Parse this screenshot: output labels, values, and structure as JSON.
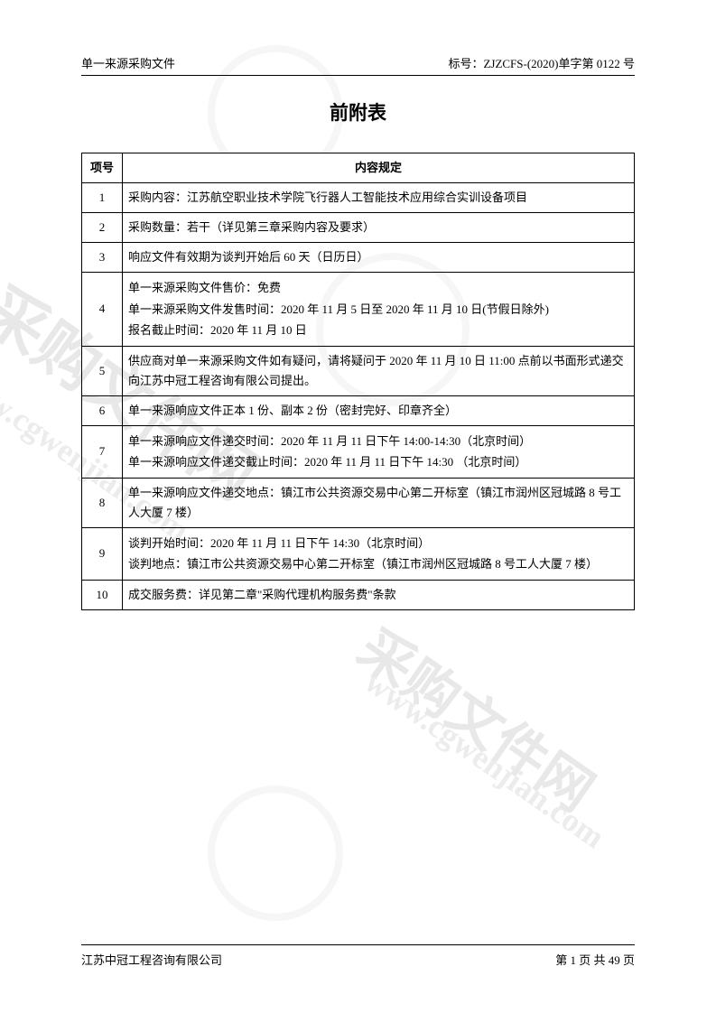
{
  "header": {
    "left": "单一来源采购文件",
    "right": "标号：ZJZCFS-(2020)单字第 0122 号"
  },
  "title": "前附表",
  "table": {
    "columns": [
      "项号",
      "内容规定"
    ],
    "rows": [
      {
        "num": "1",
        "content": "采购内容：江苏航空职业技术学院飞行器人工智能技术应用综合实训设备项目"
      },
      {
        "num": "2",
        "content": "采购数量：若干（详见第三章采购内容及要求）"
      },
      {
        "num": "3",
        "content": "响应文件有效期为谈判开始后 60 天（日历日）"
      },
      {
        "num": "4",
        "content": "单一来源采购文件售价：免费\n单一来源采购文件发售时间：2020 年 11 月 5 日至 2020 年 11 月 10 日(节假日除外)\n报名截止时间：2020 年 11 月 10 日"
      },
      {
        "num": "5",
        "content": "供应商对单一来源采购文件如有疑问，请将疑问于 2020 年 11 月 10 日 11:00 点前以书面形式递交向江苏中冠工程咨询有限公司提出。"
      },
      {
        "num": "6",
        "content": "单一来源响应文件正本 1 份、副本 2 份（密封完好、印章齐全）"
      },
      {
        "num": "7",
        "content": "单一来源响应文件递交时间：2020 年 11 月 11 日下午 14:00-14:30（北京时间）\n单一来源响应文件递交截止时间：2020 年 11 月 11 日下午 14:30 （北京时间）"
      },
      {
        "num": "8",
        "content": "单一来源响应文件递交地点：镇江市公共资源交易中心第二开标室（镇江市润州区冠城路 8 号工人大厦 7 楼）"
      },
      {
        "num": "9",
        "content": "谈判开始时间：2020 年 11 月 11 日下午 14:30（北京时间）\n谈判地点：镇江市公共资源交易中心第二开标室（镇江市润州区冠城路 8 号工人大厦 7 楼）"
      },
      {
        "num": "10",
        "content": "成交服务费：详见第二章\"采购代理机构服务费\"条款"
      }
    ]
  },
  "footer": {
    "left": "江苏中冠工程咨询有限公司",
    "right": "第 1 页 共 49 页"
  },
  "watermark": {
    "text": "采购文件网",
    "url": "www.cgwenjian.com"
  }
}
